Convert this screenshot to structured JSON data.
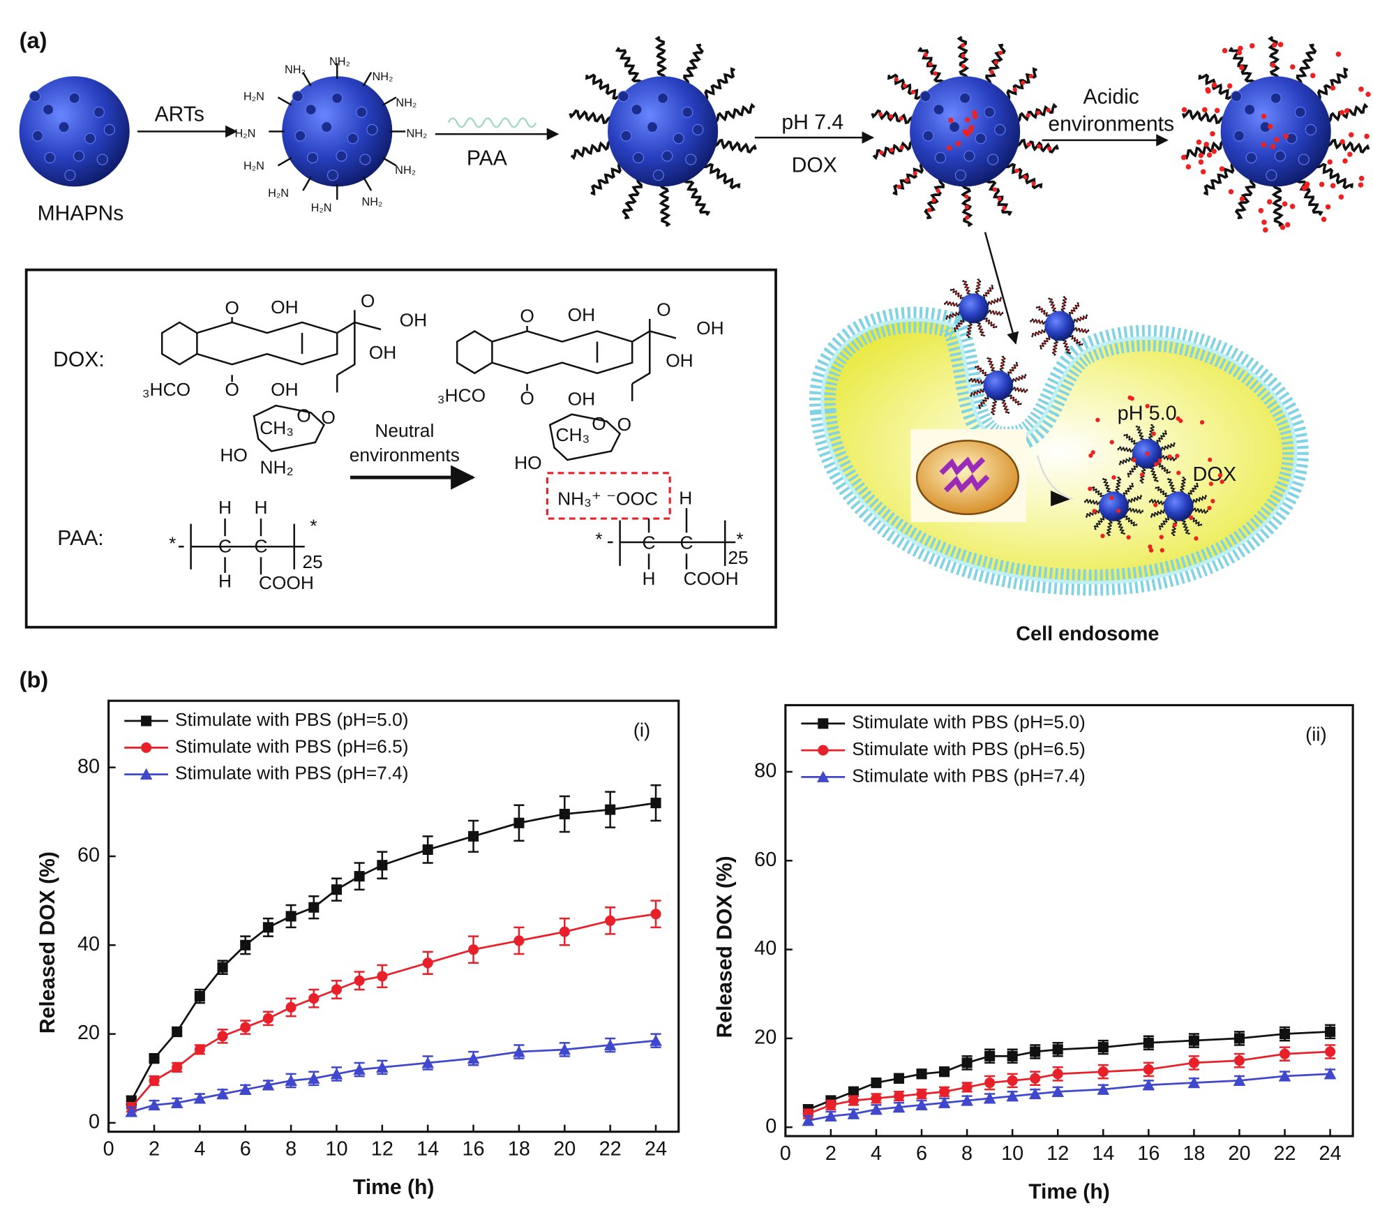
{
  "figure": {
    "panel_labels": [
      "(a)",
      "(b)"
    ],
    "scheme": {
      "mhapns": "MHAPNs",
      "arts": "ARTs",
      "paa": "PAA",
      "ph74": "pH 7.4",
      "dox": "DOX",
      "acidic": [
        "Acidic",
        "environments"
      ],
      "amine_labels": [
        "NH₂",
        "NH₂",
        "NH₂",
        "NH₂",
        "NH₂",
        "NH₂",
        "NH₂",
        "H₂N",
        "H₂N",
        "H₂N",
        "H₂N",
        "H₂N"
      ]
    },
    "box": {
      "dox_label": "DOX:",
      "paa_label": "PAA:",
      "neutral": [
        "Neutral",
        "environments"
      ],
      "structure_labels": [
        "O",
        "OH",
        "O",
        "OH",
        "OH",
        "₃HCO",
        "O",
        "OH",
        "O",
        "O",
        "CH₃",
        "HO",
        "NH₂",
        "O",
        "OH",
        "O",
        "OH",
        "OH",
        "₃HCO",
        "O",
        "OH",
        "O",
        "O",
        "CH₃",
        "HO",
        "NH₃⁺ ⁻OOC",
        "H",
        "H",
        "C",
        "C",
        "H",
        "COOH",
        "25",
        "*",
        "*",
        "H",
        "C",
        "C",
        "H",
        "COOH",
        "25",
        "*",
        "*"
      ]
    },
    "endosome": {
      "ph50": "pH 5.0",
      "dox": "DOX",
      "caption": "Cell endosome"
    }
  },
  "chart_data": [
    {
      "type": "line",
      "annotation": "(i)",
      "xlabel": "Time (h)",
      "ylabel": "Released DOX (%)",
      "x": [
        1,
        2,
        3,
        4,
        5,
        6,
        7,
        8,
        9,
        10,
        11,
        12,
        14,
        16,
        18,
        20,
        22,
        24
      ],
      "xlim": [
        0,
        25
      ],
      "xticks": [
        0,
        2,
        4,
        6,
        8,
        10,
        12,
        14,
        16,
        18,
        20,
        22,
        24
      ],
      "ylim": [
        -2,
        95
      ],
      "yticks": [
        0,
        20,
        40,
        60,
        80
      ],
      "legend": "upper left",
      "series": [
        {
          "name": "Stimulate with PBS (pH=5.0)",
          "color": "#111111",
          "marker": "square",
          "values": [
            5,
            14.5,
            20.5,
            28.5,
            35,
            40,
            44,
            46.5,
            48.5,
            52.5,
            55.5,
            58,
            61.5,
            64.5,
            67.5,
            69.5,
            70.5,
            72
          ],
          "errors": [
            1,
            1,
            1,
            1.5,
            1.5,
            2,
            2,
            2.5,
            2.5,
            2.5,
            3,
            3,
            3,
            3.5,
            4,
            4,
            4,
            4
          ]
        },
        {
          "name": "Stimulate with PBS (pH=6.5)",
          "color": "#e8202a",
          "marker": "circle",
          "values": [
            3.5,
            9.5,
            12.5,
            16.5,
            19.5,
            21.5,
            23.5,
            26,
            28,
            30,
            32,
            33,
            36,
            39,
            41,
            43,
            45.5,
            47
          ],
          "errors": [
            1,
            1,
            1,
            1,
            1.5,
            1.5,
            1.5,
            2,
            2,
            2,
            2,
            2.5,
            2.5,
            3,
            3,
            3,
            3,
            3
          ]
        },
        {
          "name": "Stimulate with PBS (pH=7.4)",
          "color": "#3f48cc",
          "marker": "triangle",
          "values": [
            2.5,
            4,
            4.5,
            5.5,
            6.5,
            7.5,
            8.5,
            9.5,
            10,
            11,
            12,
            12.5,
            13.5,
            14.5,
            16,
            16.5,
            17.5,
            18.5
          ],
          "errors": [
            1,
            1,
            1,
            1,
            1,
            1,
            1,
            1.5,
            1.5,
            1.5,
            1.5,
            1.5,
            1.5,
            1.5,
            1.5,
            1.5,
            1.5,
            1.5
          ]
        }
      ]
    },
    {
      "type": "line",
      "annotation": "(ii)",
      "xlabel": "Time (h)",
      "ylabel": "Released DOX (%)",
      "x": [
        1,
        2,
        3,
        4,
        5,
        6,
        7,
        8,
        9,
        10,
        11,
        12,
        14,
        16,
        18,
        20,
        22,
        24
      ],
      "xlim": [
        0,
        25
      ],
      "xticks": [
        0,
        2,
        4,
        6,
        8,
        10,
        12,
        14,
        16,
        18,
        20,
        22,
        24
      ],
      "ylim": [
        -2,
        95
      ],
      "yticks": [
        0,
        20,
        40,
        60,
        80
      ],
      "legend": "upper left",
      "series": [
        {
          "name": "Stimulate with PBS (pH=5.0)",
          "color": "#111111",
          "marker": "square",
          "values": [
            4,
            6,
            8,
            10,
            11,
            12,
            12.5,
            14.5,
            16,
            16,
            17,
            17.5,
            18,
            19,
            19.5,
            20,
            21,
            21.5
          ],
          "errors": [
            1,
            1,
            1,
            1,
            1,
            1,
            1,
            1.5,
            1.5,
            1.5,
            1.5,
            1.5,
            1.5,
            1.5,
            1.5,
            1.5,
            1.5,
            1.5
          ]
        },
        {
          "name": "Stimulate with PBS (pH=6.5)",
          "color": "#e8202a",
          "marker": "circle",
          "values": [
            3,
            5,
            6,
            6.5,
            7,
            7.5,
            8,
            9,
            10,
            10.5,
            11,
            12,
            12.5,
            13,
            14.5,
            15,
            16.5,
            17
          ],
          "errors": [
            1,
            1,
            1,
            1,
            1,
            1,
            1,
            1,
            1.5,
            1.5,
            1.5,
            1.5,
            1.5,
            1.5,
            1.5,
            1.5,
            1.5,
            1.5
          ]
        },
        {
          "name": "Stimulate with PBS (pH=7.4)",
          "color": "#3f48cc",
          "marker": "triangle",
          "values": [
            1.5,
            2.5,
            3,
            4,
            4.5,
            5,
            5.5,
            6,
            6.5,
            7,
            7.5,
            8,
            8.5,
            9.5,
            10,
            10.5,
            11.5,
            12
          ],
          "errors": [
            1,
            1,
            1,
            1,
            1,
            1,
            1,
            1,
            1,
            1,
            1,
            1,
            1,
            1,
            1,
            1,
            1,
            1
          ]
        }
      ]
    }
  ]
}
